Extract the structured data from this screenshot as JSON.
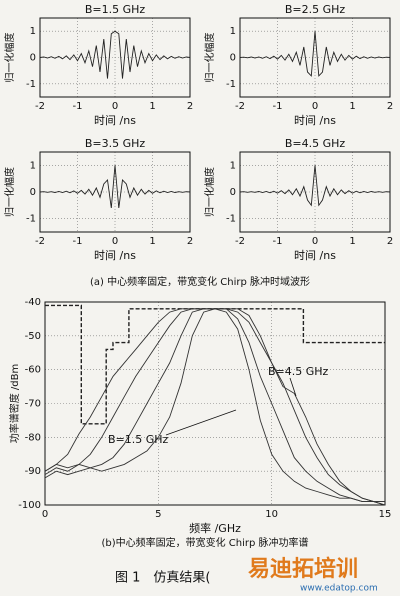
{
  "chart_data": [
    {
      "type": "line",
      "title": "B=1.5 GHz",
      "x_label": "时间 /ns",
      "y_label": "归一化幅度",
      "x": [
        -2,
        -1.9,
        -1.8,
        -1.7,
        -1.6,
        -1.5,
        -1.4,
        -1.3,
        -1.2,
        -1.1,
        -1,
        -0.9,
        -0.8,
        -0.7,
        -0.6,
        -0.5,
        -0.4,
        -0.3,
        -0.2,
        -0.1,
        0,
        0.1,
        0.2,
        0.3,
        0.4,
        0.5,
        0.6,
        0.7,
        0.8,
        0.9,
        1,
        1.1,
        1.2,
        1.3,
        1.4,
        1.5,
        1.6,
        1.7,
        1.8,
        1.9,
        2
      ],
      "series": [
        {
          "color": "#222",
          "values": [
            0,
            0.02,
            -0.02,
            0.03,
            -0.03,
            0.04,
            -0.05,
            0.06,
            -0.08,
            0.1,
            -0.12,
            0.15,
            -0.2,
            0.25,
            -0.35,
            0.45,
            -0.55,
            0.7,
            -0.8,
            0.9,
            1,
            0.9,
            -0.8,
            0.7,
            -0.55,
            0.45,
            -0.35,
            0.25,
            -0.2,
            0.15,
            -0.12,
            0.1,
            -0.08,
            0.06,
            -0.05,
            0.04,
            -0.03,
            0.03,
            -0.02,
            0.02,
            0
          ]
        }
      ],
      "xlim": [
        -2,
        2
      ],
      "xticks": [
        -2,
        -1,
        0,
        1,
        2
      ],
      "ylim": [
        -1.5,
        1.5
      ],
      "yticks": [
        -1,
        0,
        1
      ],
      "grid": true
    },
    {
      "type": "line",
      "title": "B=2.5 GHz",
      "x_label": "时间 /ns",
      "y_label": "归一化幅度",
      "x": [
        -2,
        -1.9,
        -1.8,
        -1.7,
        -1.6,
        -1.5,
        -1.4,
        -1.3,
        -1.2,
        -1.1,
        -1,
        -0.9,
        -0.8,
        -0.7,
        -0.6,
        -0.5,
        -0.4,
        -0.3,
        -0.2,
        -0.1,
        0,
        0.1,
        0.2,
        0.3,
        0.4,
        0.5,
        0.6,
        0.7,
        0.8,
        0.9,
        1,
        1.1,
        1.2,
        1.3,
        1.4,
        1.5,
        1.6,
        1.7,
        1.8,
        1.9,
        2
      ],
      "series": [
        {
          "color": "#222",
          "values": [
            0,
            0.01,
            -0.01,
            0.02,
            -0.02,
            0.02,
            -0.03,
            0.03,
            -0.04,
            0.05,
            -0.06,
            0.08,
            -0.1,
            0.12,
            -0.15,
            0.2,
            -0.3,
            0.4,
            -0.55,
            -0.7,
            1,
            -0.7,
            -0.55,
            0.4,
            -0.3,
            0.2,
            -0.15,
            0.12,
            -0.1,
            0.08,
            -0.06,
            0.05,
            -0.04,
            0.03,
            -0.03,
            0.02,
            -0.02,
            0.02,
            -0.01,
            0.01,
            0
          ]
        }
      ],
      "xlim": [
        -2,
        2
      ],
      "xticks": [
        -2,
        -1,
        0,
        1,
        2
      ],
      "ylim": [
        -1.5,
        1.5
      ],
      "yticks": [
        -1,
        0,
        1
      ],
      "grid": true
    },
    {
      "type": "line",
      "title": "B=3.5 GHz",
      "x_label": "时间 /ns",
      "y_label": "归一化幅度",
      "x": [
        -2,
        -1.9,
        -1.8,
        -1.7,
        -1.6,
        -1.5,
        -1.4,
        -1.3,
        -1.2,
        -1.1,
        -1,
        -0.9,
        -0.8,
        -0.7,
        -0.6,
        -0.5,
        -0.4,
        -0.3,
        -0.2,
        -0.1,
        0,
        0.1,
        0.2,
        0.3,
        0.4,
        0.5,
        0.6,
        0.7,
        0.8,
        0.9,
        1,
        1.1,
        1.2,
        1.3,
        1.4,
        1.5,
        1.6,
        1.7,
        1.8,
        1.9,
        2
      ],
      "series": [
        {
          "color": "#222",
          "values": [
            0,
            0.01,
            -0.01,
            0.01,
            -0.02,
            0.02,
            -0.02,
            0.03,
            -0.03,
            0.04,
            -0.05,
            0.06,
            -0.08,
            0.1,
            -0.12,
            0.15,
            -0.2,
            0.3,
            0.45,
            -0.6,
            1,
            -0.6,
            0.45,
            0.3,
            -0.2,
            0.15,
            -0.12,
            0.1,
            -0.08,
            0.06,
            -0.05,
            0.04,
            -0.03,
            0.03,
            -0.02,
            0.02,
            -0.02,
            0.01,
            -0.01,
            0.01,
            0
          ]
        }
      ],
      "xlim": [
        -2,
        2
      ],
      "xticks": [
        -2,
        -1,
        0,
        1,
        2
      ],
      "ylim": [
        -1.5,
        1.5
      ],
      "yticks": [
        -1,
        0,
        1
      ],
      "grid": true
    },
    {
      "type": "line",
      "title": "B=4.5 GHz",
      "x_label": "时间 /ns",
      "y_label": "归一化幅度",
      "x": [
        -2,
        -1.9,
        -1.8,
        -1.7,
        -1.6,
        -1.5,
        -1.4,
        -1.3,
        -1.2,
        -1.1,
        -1,
        -0.9,
        -0.8,
        -0.7,
        -0.6,
        -0.5,
        -0.4,
        -0.3,
        -0.2,
        -0.1,
        0,
        0.1,
        0.2,
        0.3,
        0.4,
        0.5,
        0.6,
        0.7,
        0.8,
        0.9,
        1,
        1.1,
        1.2,
        1.3,
        1.4,
        1.5,
        1.6,
        1.7,
        1.8,
        1.9,
        2
      ],
      "series": [
        {
          "color": "#222",
          "values": [
            0,
            0.01,
            -0.01,
            0.01,
            -0.01,
            0.02,
            -0.02,
            0.02,
            -0.03,
            0.03,
            -0.04,
            0.05,
            -0.06,
            0.08,
            -0.1,
            0.12,
            -0.15,
            0.2,
            -0.3,
            -0.5,
            1,
            -0.5,
            -0.3,
            0.2,
            -0.15,
            0.12,
            -0.1,
            0.08,
            -0.06,
            0.05,
            -0.04,
            0.03,
            -0.03,
            0.02,
            -0.02,
            0.02,
            -0.01,
            0.01,
            -0.01,
            0.01,
            0
          ]
        }
      ],
      "xlim": [
        -2,
        2
      ],
      "xticks": [
        -2,
        -1,
        0,
        1,
        2
      ],
      "ylim": [
        -1.5,
        1.5
      ],
      "yticks": [
        -1,
        0,
        1
      ],
      "grid": true
    },
    {
      "type": "line",
      "x_label": "频率 /GHz",
      "y_label": "功率谱密度 /dBm",
      "x": [
        0,
        0.5,
        1,
        1.5,
        2,
        2.5,
        3,
        3.5,
        4,
        4.5,
        5,
        5.5,
        6,
        6.5,
        7,
        7.5,
        8,
        8.5,
        9,
        9.5,
        10,
        10.5,
        11,
        11.5,
        12,
        12.5,
        13,
        13.5,
        14,
        14.5,
        15
      ],
      "series": [
        {
          "color": "#222",
          "dash": true,
          "x": [
            0,
            1.6,
            1.6,
            2.7,
            2.7,
            3,
            3,
            3.7,
            3.7,
            11.4,
            11.4,
            15
          ],
          "values": [
            -41,
            -41,
            -76,
            -76,
            -54,
            -54,
            -52,
            -52,
            -42,
            -42,
            -52,
            -52
          ]
        },
        {
          "color": "#333",
          "values": [
            -92,
            -90,
            -91,
            -90,
            -89,
            -90,
            -89,
            -88,
            -86,
            -84,
            -80,
            -74,
            -64,
            -50,
            -43,
            -42,
            -43,
            -48,
            -60,
            -75,
            -85,
            -90,
            -93,
            -95,
            -96,
            -97,
            -98,
            -98,
            -99,
            -99,
            -100
          ]
        },
        {
          "color": "#333",
          "values": [
            -91,
            -89,
            -90,
            -88,
            -89,
            -88,
            -86,
            -82,
            -76,
            -70,
            -64,
            -58,
            -50,
            -43,
            -42,
            -42,
            -42,
            -45,
            -52,
            -62,
            -70,
            -78,
            -86,
            -90,
            -93,
            -95,
            -97,
            -98,
            -99,
            -99,
            -100
          ]
        },
        {
          "color": "#333",
          "values": [
            -90,
            -88,
            -89,
            -88,
            -85,
            -80,
            -74,
            -68,
            -62,
            -57,
            -52,
            -47,
            -43,
            -42,
            -42,
            -42,
            -42,
            -43,
            -46,
            -52,
            -58,
            -64,
            -72,
            -80,
            -86,
            -91,
            -94,
            -96,
            -98,
            -99,
            -99
          ]
        },
        {
          "color": "#333",
          "values": [
            -90,
            -88,
            -85,
            -79,
            -74,
            -68,
            -62,
            -58,
            -54,
            -50,
            -46,
            -43,
            -42,
            -42,
            -42,
            -42,
            -42,
            -42,
            -44,
            -50,
            -58,
            -65,
            -67,
            -74,
            -82,
            -88,
            -93,
            -96,
            -98,
            -99,
            -99
          ]
        }
      ],
      "annotations": [
        "B=4.5 GHz",
        "B=1.5 GHz"
      ],
      "xlim": [
        0,
        15
      ],
      "xticks": [
        0,
        5,
        10,
        15
      ],
      "ylim": [
        -100,
        -40
      ],
      "yticks": [
        -40,
        -50,
        -60,
        -70,
        -80,
        -90,
        -100
      ],
      "grid": true
    }
  ],
  "captions": {
    "a": "(a)  中心频率固定，带宽变化 Chirp 脉冲时域波形",
    "b": "(b)中心频率固定，带宽变化 Chirp 脉冲功率谱",
    "figure": "图 1　仿真结果("
  },
  "watermark": {
    "brand": "易迪拓培训",
    "url": "www.edatop.com"
  }
}
